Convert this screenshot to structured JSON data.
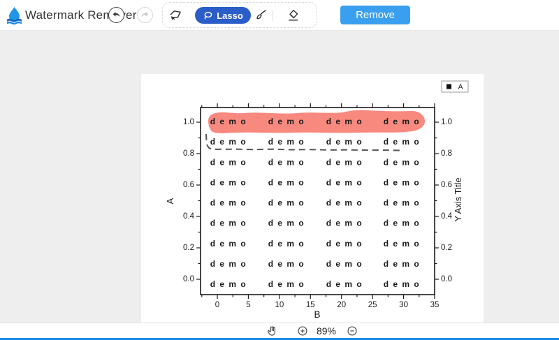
{
  "toolbar": {
    "logo_icon": "waterdrop-logo",
    "title": "Watermark Remover",
    "undo_icon": "undo-arrow",
    "redo_icon": "redo-arrow",
    "polygon_tool_icon": "polygon-lasso",
    "lasso_button": {
      "label": "Lasso",
      "icon": "lasso",
      "bg": "#2b5dc9"
    },
    "brush_tool_icon": "brush",
    "eraser_tool_icon": "eraser",
    "remove_button": {
      "label": "Remove",
      "bg": "#3b9ff0"
    }
  },
  "footer": {
    "pan_icon": "pan-hand",
    "zoom_in_icon": "zoom-in",
    "zoom_level": "89%",
    "zoom_out_icon": "zoom-out"
  },
  "chart_data": {
    "type": "line",
    "title": "",
    "xlabel": "B",
    "ylabel_left": "A",
    "ylabel_right": "Y Axis Title",
    "xlim": [
      -2.7,
      35
    ],
    "ylim": [
      -0.1,
      1.09
    ],
    "x_ticks": [
      0,
      5,
      10,
      15,
      20,
      25,
      30,
      35
    ],
    "x_minor_ticks": [
      -2.5,
      2.5,
      7.5,
      12.5,
      17.5,
      22.5,
      27.5,
      32.5
    ],
    "y_ticks": [
      0.0,
      0.2,
      0.4,
      0.6,
      0.8,
      1.0
    ],
    "y_minor_ticks": [
      0.1,
      0.3,
      0.5,
      0.7,
      0.9
    ],
    "grid": false,
    "legend": {
      "label": "A",
      "marker": "filled-square",
      "marker_color": "#111111",
      "position": "top-right-outside"
    },
    "series": [
      {
        "name": "A",
        "style": "dashed",
        "color": "#5a5a5a",
        "points": [
          [
            -1.8,
            0.925
          ],
          [
            -1.75,
            0.88
          ],
          [
            -1.6,
            0.85
          ],
          [
            -1.3,
            0.835
          ],
          [
            -0.8,
            0.828
          ],
          [
            0,
            0.827
          ],
          [
            3,
            0.828
          ],
          [
            6,
            0.826
          ],
          [
            9,
            0.828
          ],
          [
            12,
            0.825
          ],
          [
            15,
            0.826
          ],
          [
            18,
            0.823
          ],
          [
            21,
            0.824
          ],
          [
            24,
            0.822
          ],
          [
            27,
            0.822
          ],
          [
            30,
            0.82
          ]
        ]
      }
    ],
    "watermark_grid": {
      "text": "demo",
      "color": "#10e4f0",
      "first_row_color": "#8f9496",
      "rows": 9,
      "cols": 4
    },
    "selection_overlay": {
      "tool": "lasso",
      "color": "#f8897f",
      "covers": "top watermark row near y=1.0"
    }
  }
}
